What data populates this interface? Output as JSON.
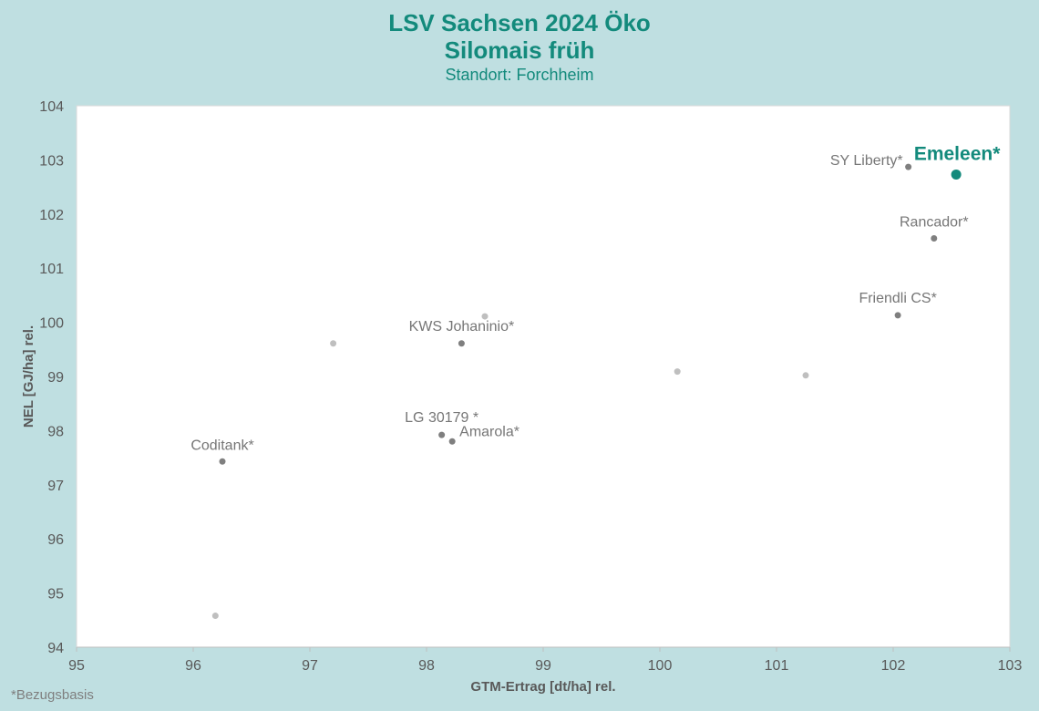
{
  "chart_data": {
    "type": "scatter",
    "title": "LSV Sachsen 2024 Öko",
    "subtitle": "Silomais früh",
    "location": "Standort: Forchheim",
    "xlabel": "GTM-Ertrag [dt/ha] rel.",
    "ylabel": "NEL [GJ/ha] rel.",
    "xlim": [
      95,
      103
    ],
    "ylim": [
      94,
      104
    ],
    "xticks": [
      "95",
      "96",
      "97",
      "98",
      "99",
      "100",
      "101",
      "102",
      "103"
    ],
    "yticks": [
      "94",
      "95",
      "96",
      "97",
      "98",
      "99",
      "100",
      "101",
      "102",
      "103",
      "104"
    ],
    "footnote": "*Bezugsbasis",
    "points": [
      {
        "label": "Emeleen*",
        "x": 102.54,
        "y": 102.73,
        "style": "highlight"
      },
      {
        "label": "SY Liberty*",
        "x": 102.13,
        "y": 102.87,
        "style": "labeled"
      },
      {
        "label": "Rancador*",
        "x": 102.35,
        "y": 101.55,
        "style": "labeled"
      },
      {
        "label": "Friendli CS*",
        "x": 102.04,
        "y": 100.13,
        "style": "labeled"
      },
      {
        "label": "KWS Johaninio*",
        "x": 98.3,
        "y": 99.61,
        "style": "labeled"
      },
      {
        "label": "LG 30179 *",
        "x": 98.13,
        "y": 97.92,
        "style": "labeled"
      },
      {
        "label": "Amarola*",
        "x": 98.22,
        "y": 97.8,
        "style": "labeled"
      },
      {
        "label": "Coditank*",
        "x": 96.25,
        "y": 97.43,
        "style": "labeled"
      },
      {
        "label": "",
        "x": 98.5,
        "y": 100.11,
        "style": "minor"
      },
      {
        "label": "",
        "x": 97.2,
        "y": 99.61,
        "style": "minor"
      },
      {
        "label": "",
        "x": 100.15,
        "y": 99.09,
        "style": "minor"
      },
      {
        "label": "",
        "x": 101.25,
        "y": 99.02,
        "style": "minor"
      },
      {
        "label": "",
        "x": 96.19,
        "y": 94.58,
        "style": "minor"
      }
    ]
  },
  "colors": {
    "accent": "#138a7c",
    "labeled_point": "#7f7f7f",
    "minor_point": "#bfbfbf",
    "axis_text": "#595959",
    "label_text": "#767676"
  }
}
